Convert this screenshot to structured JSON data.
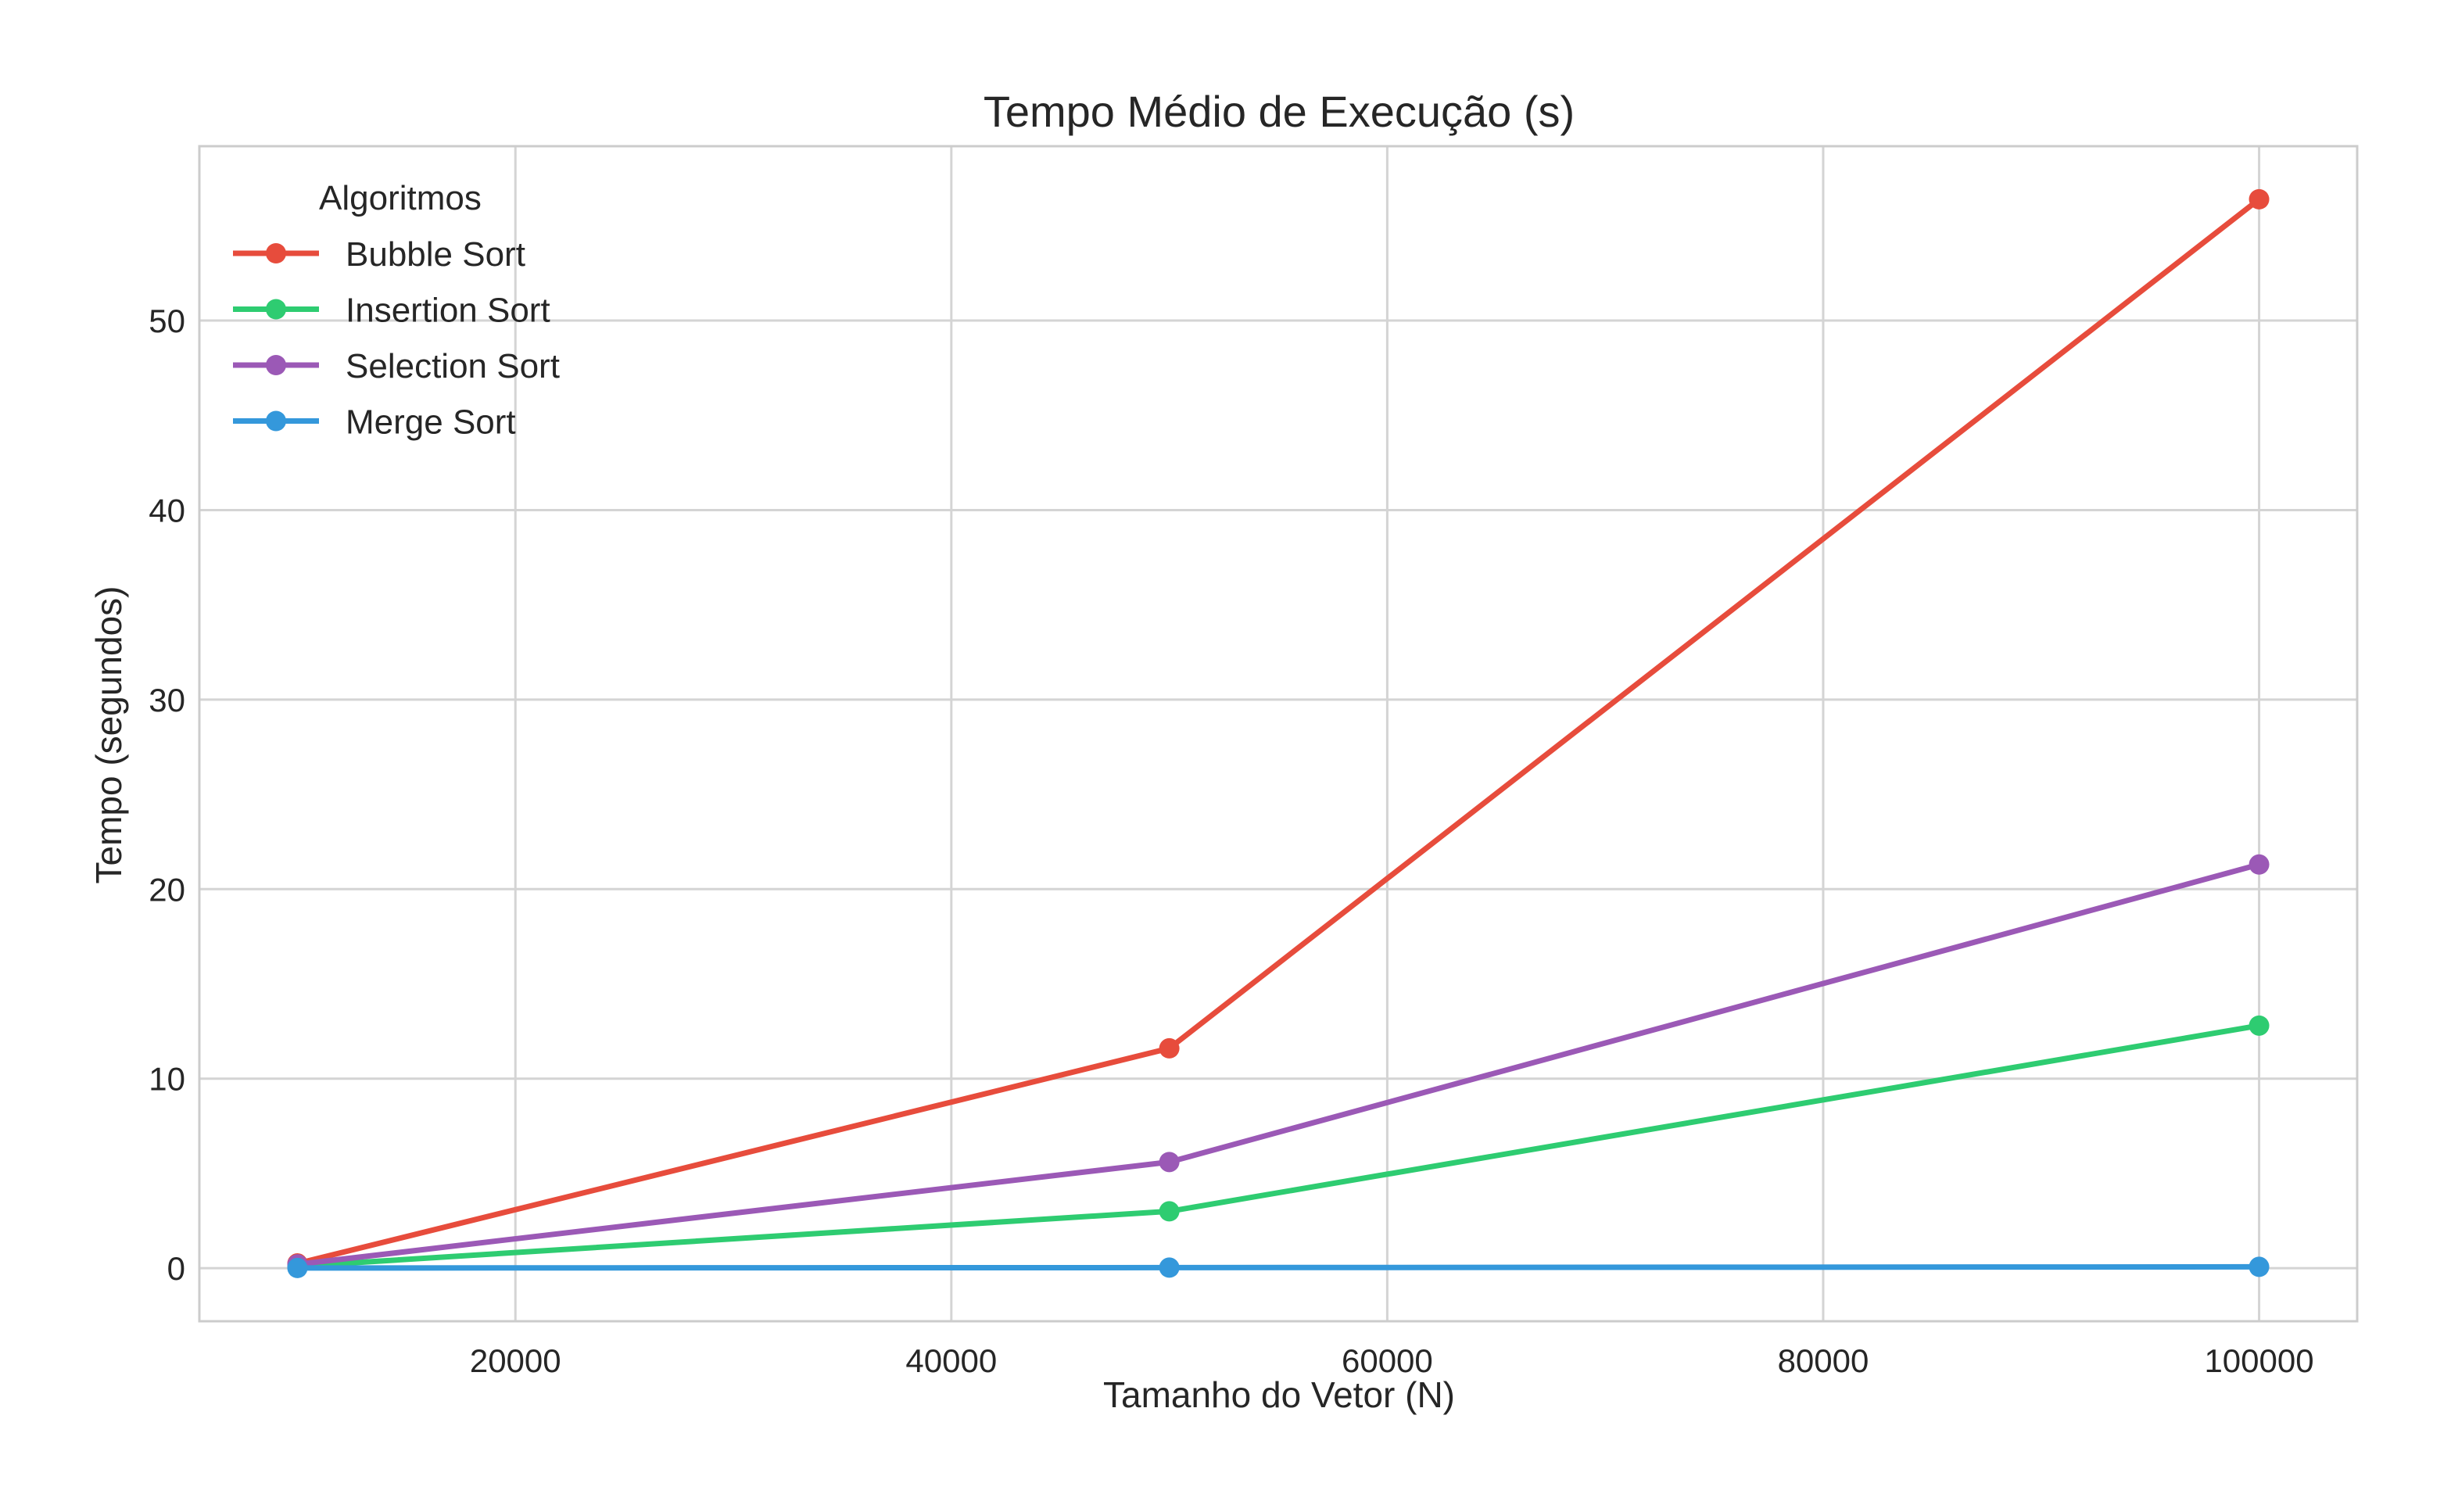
{
  "chart_data": {
    "type": "line",
    "title": "Tempo Médio de Execução (s)",
    "xlabel": "Tamanho do Vetor (N)",
    "ylabel": "Tempo (segundos)",
    "x": [
      10000,
      50000,
      100000
    ],
    "xlim": [
      5500,
      104500
    ],
    "ylim": [
      -2.8,
      59.2
    ],
    "xticks": [
      20000,
      40000,
      60000,
      80000,
      100000
    ],
    "yticks": [
      0,
      10,
      20,
      30,
      40,
      50
    ],
    "grid": true,
    "legend": {
      "title": "Algoritmos",
      "placement": "top-left"
    },
    "series": [
      {
        "name": "Bubble Sort",
        "color": "#e74c3c",
        "values": [
          0.25,
          11.6,
          56.4
        ]
      },
      {
        "name": "Insertion Sort",
        "color": "#2ecc71",
        "values": [
          0.1,
          3.0,
          12.8
        ]
      },
      {
        "name": "Selection Sort",
        "color": "#9b59b6",
        "values": [
          0.2,
          5.6,
          21.3
        ]
      },
      {
        "name": "Merge Sort",
        "color": "#3498db",
        "values": [
          0.01,
          0.03,
          0.07
        ]
      }
    ]
  }
}
